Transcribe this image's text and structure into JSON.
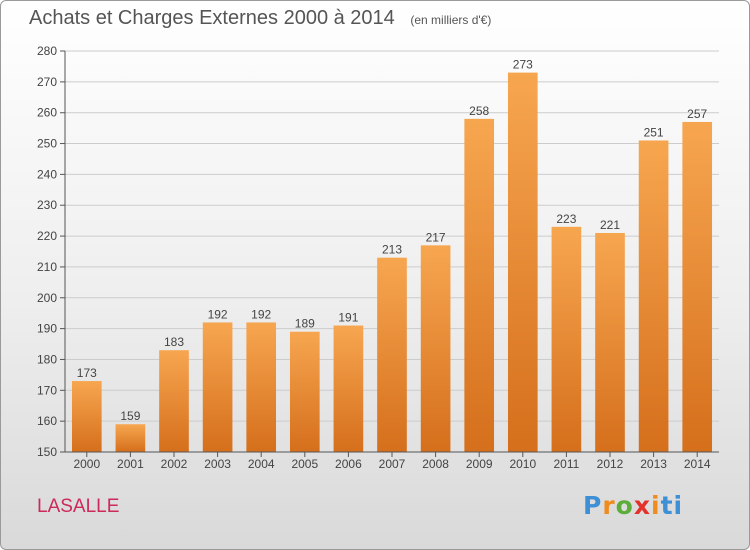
{
  "header": {
    "title": "Achats et Charges Externes 2000 à 2014",
    "subtitle": "(en milliers d'€)"
  },
  "footer": {
    "place": "LASALLE",
    "brand_letters": [
      "P",
      "r",
      "o",
      "x",
      "i",
      "ti"
    ]
  },
  "colors": {
    "bar_top": "#f7a650",
    "bar_bottom": "#d56f1c",
    "axis": "#555555",
    "grid": "#cccccc"
  },
  "chart_data": {
    "type": "bar",
    "title": "Achats et Charges Externes 2000 à 2014",
    "subtitle": "(en milliers d'€)",
    "xlabel": "",
    "ylabel": "",
    "categories": [
      "2000",
      "2001",
      "2002",
      "2003",
      "2004",
      "2005",
      "2006",
      "2007",
      "2008",
      "2009",
      "2010",
      "2011",
      "2012",
      "2013",
      "2014"
    ],
    "values": [
      173,
      159,
      183,
      192,
      192,
      189,
      191,
      213,
      217,
      258,
      273,
      223,
      221,
      251,
      257
    ],
    "ylim": [
      150,
      280
    ],
    "yticks": [
      150,
      160,
      170,
      180,
      190,
      200,
      210,
      220,
      230,
      240,
      250,
      260,
      270,
      280
    ],
    "grid": true,
    "data_labels": true
  }
}
